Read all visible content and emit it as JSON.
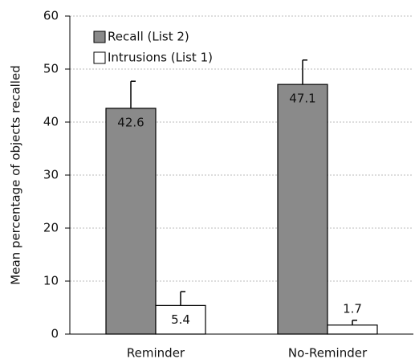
{
  "chart_data": {
    "type": "bar",
    "ylabel": "Mean percentage of objects recalled",
    "categories": [
      "Reminder",
      "No-Reminder"
    ],
    "series": [
      {
        "name": "Recall (List 2)",
        "color": "#8a8a8a",
        "values": [
          42.6,
          47.1
        ],
        "errors": [
          5.1,
          4.6
        ]
      },
      {
        "name": "Intrusions (List 1)",
        "color": "#ffffff",
        "values": [
          5.4,
          1.7
        ],
        "errors": [
          2.6,
          0.9
        ]
      }
    ],
    "ylim": [
      0,
      60
    ],
    "yticks": [
      0,
      10,
      20,
      30,
      40,
      50,
      60
    ],
    "grid": true,
    "legend": "upper left"
  }
}
